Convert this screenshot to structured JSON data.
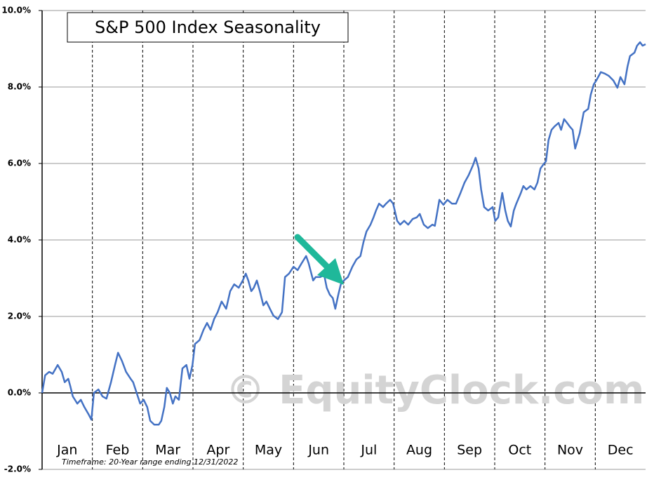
{
  "chart_data": {
    "type": "line",
    "title": "S&P 500 Index Seasonality",
    "footnote": "Timeframe: 20-Year range ending 12/31/2022",
    "watermark": "© EquityClock.com",
    "categories": [
      "Jan",
      "Feb",
      "Mar",
      "Apr",
      "May",
      "Jun",
      "Jul",
      "Aug",
      "Sep",
      "Oct",
      "Nov",
      "Dec"
    ],
    "xlim": [
      0,
      12
    ],
    "xticks": [
      1,
      2,
      3,
      4,
      5,
      6,
      7,
      8,
      9,
      10,
      11
    ],
    "ylim": [
      -2,
      10
    ],
    "yticks": [
      {
        "value": -2,
        "label": "-2.0%"
      },
      {
        "value": 0,
        "label": "0.0%"
      },
      {
        "value": 2,
        "label": "2.0%"
      },
      {
        "value": 4,
        "label": "4.0%"
      },
      {
        "value": 6,
        "label": "6.0%"
      },
      {
        "value": 8,
        "label": "8.0%"
      },
      {
        "value": 10,
        "label": "10.0%"
      }
    ],
    "grid": true,
    "color": "#4472c4",
    "x": [
      0.0,
      0.06,
      0.14,
      0.21,
      0.31,
      0.39,
      0.45,
      0.52,
      0.56,
      0.61,
      0.7,
      0.77,
      0.84,
      0.92,
      0.98,
      1.03,
      1.12,
      1.2,
      1.28,
      1.37,
      1.45,
      1.51,
      1.59,
      1.67,
      1.76,
      1.81,
      1.88,
      1.95,
      2.02,
      2.09,
      2.15,
      2.23,
      2.32,
      2.37,
      2.43,
      2.48,
      2.54,
      2.6,
      2.65,
      2.72,
      2.79,
      2.87,
      2.93,
      2.99,
      3.04,
      3.13,
      3.21,
      3.28,
      3.35,
      3.42,
      3.49,
      3.57,
      3.66,
      3.74,
      3.82,
      3.91,
      3.99,
      4.05,
      4.1,
      4.16,
      4.21,
      4.27,
      4.33,
      4.4,
      4.46,
      4.53,
      4.6,
      4.69,
      4.77,
      4.83,
      4.91,
      5.0,
      5.08,
      5.16,
      5.25,
      5.3,
      5.39,
      5.44,
      5.53,
      5.61,
      5.66,
      5.72,
      5.78,
      5.83,
      5.89,
      5.94,
      6.0,
      6.08,
      6.17,
      6.25,
      6.33,
      6.39,
      6.45,
      6.53,
      6.59,
      6.64,
      6.7,
      6.78,
      6.84,
      6.92,
      6.98,
      7.06,
      7.12,
      7.2,
      7.28,
      7.37,
      7.45,
      7.51,
      7.59,
      7.67,
      7.76,
      7.81,
      7.9,
      7.98,
      8.06,
      8.15,
      8.23,
      8.32,
      8.4,
      8.48,
      8.57,
      8.62,
      8.68,
      8.73,
      8.79,
      8.87,
      8.96,
      9.01,
      9.07,
      9.15,
      9.21,
      9.26,
      9.32,
      9.38,
      9.43,
      9.52,
      9.57,
      9.63,
      9.71,
      9.79,
      9.85,
      9.91,
      9.96,
      10.02,
      10.07,
      10.13,
      10.19,
      10.27,
      10.32,
      10.38,
      10.44,
      10.49,
      10.55,
      10.6,
      10.69,
      10.77,
      10.86,
      10.91,
      10.97,
      11.02,
      11.11,
      11.19,
      11.27,
      11.36,
      11.44,
      11.5,
      11.58,
      11.64,
      11.69,
      11.78,
      11.83,
      11.89,
      11.94,
      12.0
    ],
    "values": [
      0.0,
      0.46,
      0.55,
      0.5,
      0.73,
      0.55,
      0.28,
      0.37,
      0.18,
      -0.09,
      -0.28,
      -0.18,
      -0.37,
      -0.55,
      -0.7,
      0.0,
      0.09,
      -0.09,
      -0.15,
      0.28,
      0.73,
      1.05,
      0.83,
      0.55,
      0.37,
      0.28,
      0.0,
      -0.28,
      -0.18,
      -0.37,
      -0.73,
      -0.83,
      -0.83,
      -0.73,
      -0.37,
      0.13,
      0.0,
      -0.28,
      -0.09,
      -0.18,
      0.64,
      0.73,
      0.37,
      0.73,
      1.28,
      1.38,
      1.65,
      1.83,
      1.65,
      1.93,
      2.11,
      2.39,
      2.2,
      2.66,
      2.84,
      2.75,
      2.94,
      3.12,
      2.94,
      2.66,
      2.75,
      2.94,
      2.66,
      2.29,
      2.39,
      2.2,
      2.02,
      1.93,
      2.11,
      3.03,
      3.12,
      3.3,
      3.21,
      3.39,
      3.58,
      3.39,
      2.94,
      3.03,
      3.03,
      3.08,
      2.75,
      2.57,
      2.48,
      2.2,
      2.57,
      2.84,
      2.94,
      3.03,
      3.3,
      3.49,
      3.58,
      3.94,
      4.22,
      4.4,
      4.59,
      4.77,
      4.95,
      4.86,
      4.95,
      5.05,
      4.95,
      4.5,
      4.4,
      4.5,
      4.4,
      4.55,
      4.59,
      4.68,
      4.4,
      4.31,
      4.4,
      4.37,
      5.05,
      4.92,
      5.05,
      4.95,
      4.95,
      5.23,
      5.5,
      5.69,
      5.96,
      6.15,
      5.87,
      5.32,
      4.86,
      4.77,
      4.86,
      4.5,
      4.59,
      5.23,
      4.77,
      4.5,
      4.35,
      4.77,
      4.95,
      5.23,
      5.41,
      5.32,
      5.41,
      5.32,
      5.5,
      5.87,
      5.96,
      6.06,
      6.61,
      6.88,
      6.97,
      7.06,
      6.88,
      7.16,
      7.06,
      6.97,
      6.88,
      6.39,
      6.79,
      7.34,
      7.43,
      7.8,
      8.07,
      8.17,
      8.39,
      8.35,
      8.29,
      8.17,
      7.98,
      8.26,
      8.07,
      8.53,
      8.81,
      8.9,
      9.08,
      9.17,
      9.08,
      9.12
    ]
  }
}
